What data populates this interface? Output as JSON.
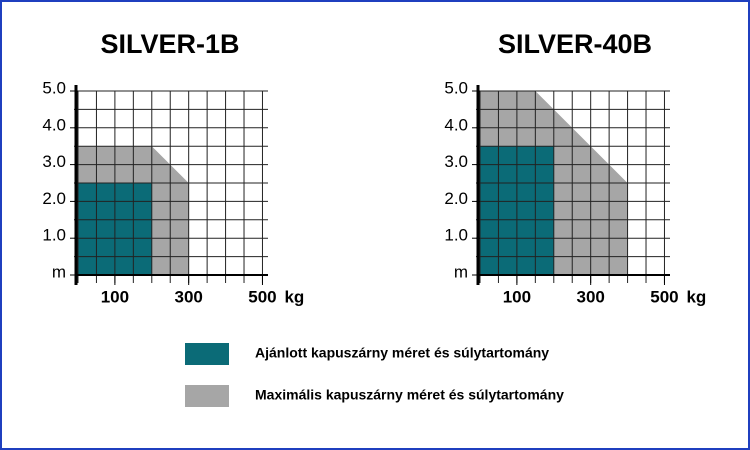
{
  "chart_data": [
    {
      "type": "area",
      "title": "SILVER-1B",
      "x_unit": "kg",
      "xlim": [
        0,
        515
      ],
      "ylim": [
        0,
        5
      ],
      "xticks": [
        100,
        300,
        500
      ],
      "yticks": [
        {
          "value": 0,
          "label": "m"
        },
        {
          "value": 1,
          "label": "1.0"
        },
        {
          "value": 2,
          "label": "2.0"
        },
        {
          "value": 3,
          "label": "3.0"
        },
        {
          "value": 4,
          "label": "4.0"
        },
        {
          "value": 5,
          "label": "5.0"
        }
      ],
      "grid": true,
      "xgrid_step": 50,
      "ygrid_step": 0.5,
      "series": [
        {
          "color": "#a6a6a6",
          "x": [
            0,
            0,
            200,
            300,
            300
          ],
          "values": [
            0,
            3.5,
            3.5,
            2.5,
            0
          ]
        },
        {
          "color": "#0b6b77",
          "x": [
            0,
            0,
            200,
            200
          ],
          "values": [
            0,
            2.5,
            2.5,
            0
          ]
        }
      ]
    },
    {
      "type": "area",
      "title": "SILVER-40B",
      "x_unit": "kg",
      "xlim": [
        0,
        515
      ],
      "ylim": [
        0,
        5
      ],
      "xticks": [
        100,
        300,
        500
      ],
      "yticks": [
        {
          "value": 0,
          "label": "m"
        },
        {
          "value": 1,
          "label": "1.0"
        },
        {
          "value": 2,
          "label": "2.0"
        },
        {
          "value": 3,
          "label": "3.0"
        },
        {
          "value": 4,
          "label": "4.0"
        },
        {
          "value": 5,
          "label": "5.0"
        }
      ],
      "grid": true,
      "xgrid_step": 50,
      "ygrid_step": 0.5,
      "series": [
        {
          "color": "#a6a6a6",
          "x": [
            0,
            0,
            150,
            400,
            400
          ],
          "values": [
            0,
            5,
            5,
            2.5,
            0
          ]
        },
        {
          "color": "#0b6b77",
          "x": [
            0,
            0,
            200,
            200
          ],
          "values": [
            0,
            3.5,
            3.5,
            0
          ]
        }
      ]
    }
  ],
  "legend": [
    {
      "label": "Ajánlott kapuszárny méret és súlytartomány",
      "color": "#0b6b77"
    },
    {
      "label": "Maximális kapuszárny méret és súlytartomány",
      "color": "#a6a6a6"
    }
  ]
}
